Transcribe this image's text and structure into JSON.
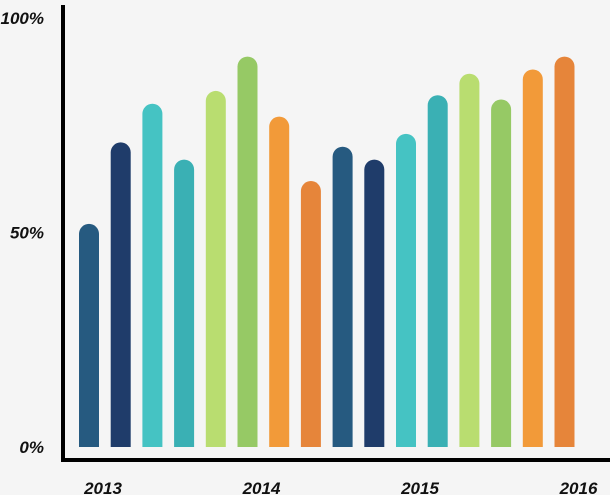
{
  "chart_data": {
    "type": "bar",
    "title": "",
    "xlabel": "",
    "ylabel": "",
    "ylim": [
      0,
      100
    ],
    "yticks": [
      {
        "value": 0,
        "label": "0%"
      },
      {
        "value": 50,
        "label": "50%"
      },
      {
        "value": 100,
        "label": "100%"
      }
    ],
    "xtick_labels": [
      {
        "bar_index": 0,
        "label": "2013"
      },
      {
        "bar_index": 5,
        "label": "2014"
      },
      {
        "bar_index": 10,
        "label": "2015"
      },
      {
        "bar_index": 15,
        "label": "2016"
      }
    ],
    "bars": [
      {
        "value": 52,
        "color": "#265a80"
      },
      {
        "value": 71,
        "color": "#1f3c6a"
      },
      {
        "value": 80,
        "color": "#45c3c3"
      },
      {
        "value": 67,
        "color": "#3ab0b4"
      },
      {
        "value": 83,
        "color": "#b9dd70"
      },
      {
        "value": 91,
        "color": "#96c965"
      },
      {
        "value": 77,
        "color": "#f29a39"
      },
      {
        "value": 62,
        "color": "#e6853a"
      },
      {
        "value": 70,
        "color": "#265a80"
      },
      {
        "value": 67,
        "color": "#1f3c6a"
      },
      {
        "value": 73,
        "color": "#45c3c3"
      },
      {
        "value": 82,
        "color": "#3ab0b4"
      },
      {
        "value": 87,
        "color": "#b9dd70"
      },
      {
        "value": 81,
        "color": "#96c965"
      },
      {
        "value": 88,
        "color": "#f29a39"
      },
      {
        "value": 91,
        "color": "#e6853a"
      }
    ],
    "grid": false,
    "legend": "none"
  }
}
